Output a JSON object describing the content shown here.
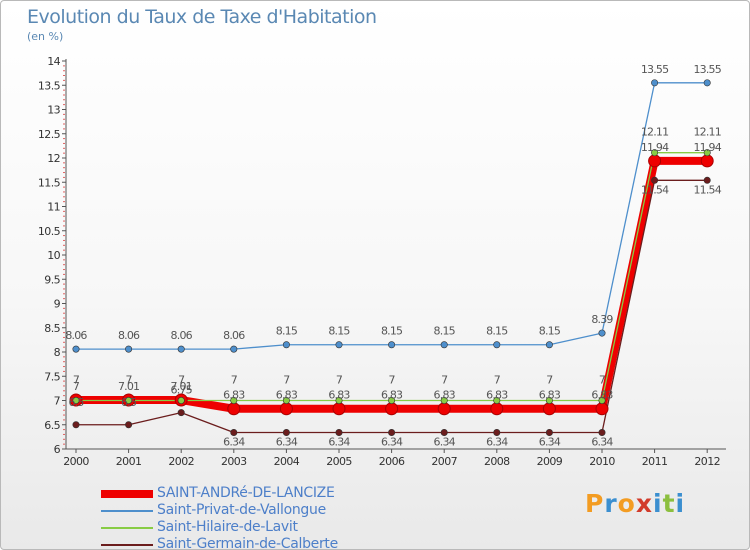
{
  "header": {
    "title": "Evolution du Taux de Taxe d'Habitation",
    "subtitle": "(en %)"
  },
  "logo": {
    "text": "Proxiti",
    "colors": [
      "#f39c22",
      "#3b8fd0",
      "#f39c22",
      "#d23b2b",
      "#3b8fd0",
      "#8cbf3f",
      "#3b8fd0"
    ]
  },
  "chart_data": {
    "type": "line",
    "x": [
      "2000",
      "2001",
      "2002",
      "2003",
      "2004",
      "2005",
      "2006",
      "2007",
      "2008",
      "2009",
      "2010",
      "2011",
      "2012"
    ],
    "ylim": [
      6,
      14
    ],
    "yticks": [
      "6",
      "6.5",
      "7",
      "7.5",
      "8",
      "8.5",
      "9",
      "9.5",
      "10",
      "10.5",
      "11",
      "11.5",
      "12",
      "12.5",
      "13",
      "13.5",
      "14"
    ],
    "grid": false,
    "legend_position": "bottom-left",
    "series": [
      {
        "name": "Saint-Privat-de-Vallongue",
        "color": "#4e8fcc",
        "width": 1.3,
        "values": [
          8.06,
          8.06,
          8.06,
          8.06,
          8.15,
          8.15,
          8.15,
          8.15,
          8.15,
          8.15,
          8.39,
          13.55,
          13.55
        ],
        "labels": [
          "8.06",
          "8.06",
          "8.06",
          "8.06",
          "8.15",
          "8.15",
          "8.15",
          "8.15",
          "8.15",
          "8.15",
          "8.39",
          "13.55",
          "13.55"
        ],
        "label_pos": "above"
      },
      {
        "name": "SAINT-ANDRé-DE-LANCIZE",
        "color": "#ee0000",
        "width": 8,
        "values": [
          7.01,
          7.01,
          7.01,
          6.83,
          6.83,
          6.83,
          6.83,
          6.83,
          6.83,
          6.83,
          6.83,
          11.94,
          11.94
        ],
        "labels": [
          "7",
          "7.01",
          "7.01",
          "6.83",
          "6.83",
          "6.83",
          "6.83",
          "6.83",
          "6.83",
          "6.83",
          "6.83",
          "11.94",
          "11.94"
        ],
        "label_pos": "above"
      },
      {
        "name": "Saint-Hilaire-de-Lavit",
        "color": "#88cc44",
        "width": 1.3,
        "values": [
          7,
          7,
          7,
          7,
          7,
          7,
          7,
          7,
          7,
          7,
          7,
          12.11,
          12.11
        ],
        "labels": [
          "7",
          "7",
          "7",
          "7",
          "7",
          "7",
          "7",
          "7",
          "7",
          "7",
          "7",
          "12.11",
          "12.11"
        ],
        "label_pos": "above-high"
      },
      {
        "name": "Saint-Germain-de-Calberte",
        "color": "#6b1d1d",
        "width": 1.3,
        "values": [
          6.5,
          6.5,
          6.75,
          6.34,
          6.34,
          6.34,
          6.34,
          6.34,
          6.34,
          6.34,
          6.34,
          11.54,
          11.54
        ],
        "labels": [
          "6.5",
          "6.5",
          "6.75",
          "6.34",
          "6.34",
          "6.34",
          "6.34",
          "6.34",
          "6.34",
          "6.34",
          "6.34",
          "11.54",
          "11.54"
        ],
        "label_pos": "above"
      }
    ],
    "legend_order": [
      "SAINT-ANDRé-DE-LANCIZE",
      "Saint-Privat-de-Vallongue",
      "Saint-Hilaire-de-Lavit",
      "Saint-Germain-de-Calberte"
    ]
  }
}
